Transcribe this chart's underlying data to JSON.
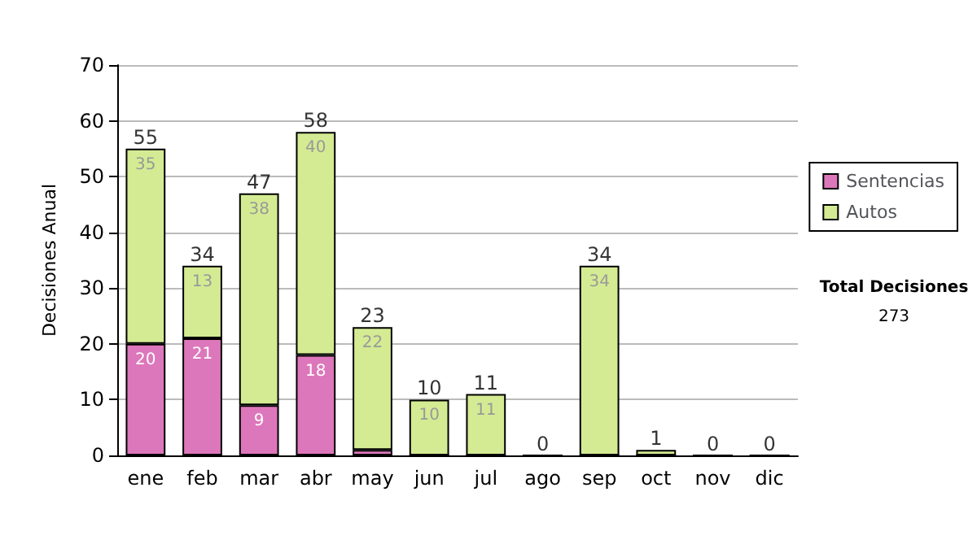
{
  "chart_data": {
    "type": "bar",
    "stacked": true,
    "ylabel": "Decisiones Anual",
    "categories": [
      "ene",
      "feb",
      "mar",
      "abr",
      "may",
      "jun",
      "jul",
      "ago",
      "sep",
      "oct",
      "nov",
      "dic"
    ],
    "series": [
      {
        "name": "Sentencias",
        "color": "#dd77bb",
        "values": [
          20,
          21,
          9,
          18,
          1,
          0,
          0,
          0,
          0,
          0,
          0,
          0
        ],
        "value_labels": [
          "20",
          "21",
          "9",
          "18",
          null,
          null,
          null,
          null,
          null,
          null,
          null,
          null
        ]
      },
      {
        "name": "Autos",
        "color": "#d4eb93",
        "values": [
          35,
          13,
          38,
          40,
          22,
          10,
          11,
          0,
          34,
          1,
          0,
          0
        ],
        "value_labels": [
          "35",
          "13",
          "38",
          "40",
          "22",
          "10",
          "11",
          null,
          "34",
          null,
          null,
          null
        ]
      }
    ],
    "totals": [
      "55",
      "34",
      "47",
      "58",
      "23",
      "10",
      "11",
      "0",
      "34",
      "1",
      "0",
      "0"
    ],
    "ylim": [
      0,
      70
    ],
    "yticks": [
      0,
      10,
      20,
      30,
      40,
      50,
      60,
      70
    ],
    "grid": "y",
    "legend": "right",
    "annotations": [
      "Total Decisiones",
      "273"
    ]
  }
}
